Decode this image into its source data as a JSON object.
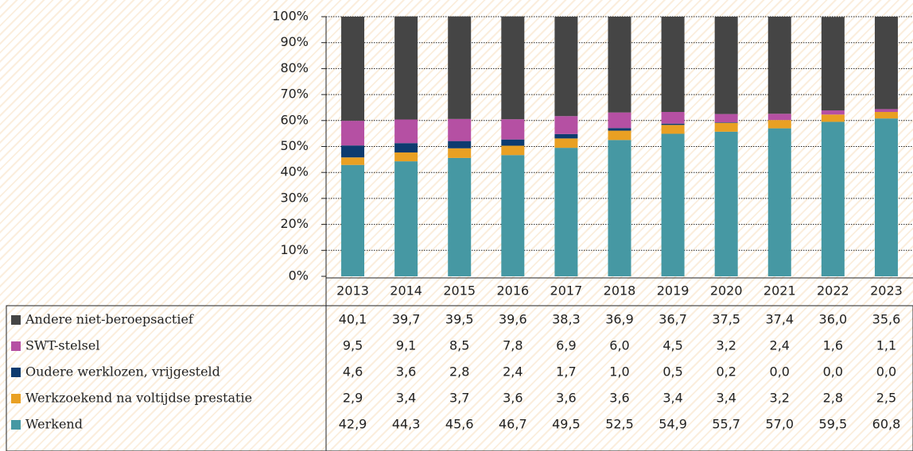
{
  "chart_data": {
    "type": "stacked_bar",
    "categories": [
      "2013",
      "2014",
      "2015",
      "2016",
      "2017",
      "2018",
      "2019",
      "2020",
      "2021",
      "2022",
      "2023"
    ],
    "series": [
      {
        "name": "Andere niet-beroepsactief",
        "color": "#454545",
        "values": [
          40.1,
          39.7,
          39.5,
          39.6,
          38.3,
          36.9,
          36.7,
          37.5,
          37.4,
          36.0,
          35.6
        ],
        "value_labels": [
          "40,1",
          "39,7",
          "39,5",
          "39,6",
          "38,3",
          "36,9",
          "36,7",
          "37,5",
          "37,4",
          "36,0",
          "35,6"
        ]
      },
      {
        "name": "SWT-stelsel",
        "color": "#b550a3",
        "values": [
          9.5,
          9.1,
          8.5,
          7.8,
          6.9,
          6.0,
          4.5,
          3.2,
          2.4,
          1.6,
          1.1
        ],
        "value_labels": [
          "9,5",
          "9,1",
          "8,5",
          "7,8",
          "6,9",
          "6,0",
          "4,5",
          "3,2",
          "2,4",
          "1,6",
          "1,1"
        ]
      },
      {
        "name": "Oudere werklozen, vrijgesteld",
        "color": "#0d3b6f",
        "values": [
          4.6,
          3.6,
          2.8,
          2.4,
          1.7,
          1.0,
          0.5,
          0.2,
          0.0,
          0.0,
          0.0
        ],
        "value_labels": [
          "4,6",
          "3,6",
          "2,8",
          "2,4",
          "1,7",
          "1,0",
          "0,5",
          "0,2",
          "0,0",
          "0,0",
          "0,0"
        ]
      },
      {
        "name": "Werkzoekend na voltijdse prestatie",
        "color": "#e9a023",
        "values": [
          2.9,
          3.4,
          3.7,
          3.6,
          3.6,
          3.6,
          3.4,
          3.4,
          3.2,
          2.8,
          2.5
        ],
        "value_labels": [
          "2,9",
          "3,4",
          "3,7",
          "3,6",
          "3,6",
          "3,6",
          "3,4",
          "3,4",
          "3,2",
          "2,8",
          "2,5"
        ]
      },
      {
        "name": "Werkend",
        "color": "#4698a3",
        "values": [
          42.9,
          44.3,
          45.6,
          46.7,
          49.5,
          52.5,
          54.9,
          55.7,
          57.0,
          59.5,
          60.8
        ],
        "value_labels": [
          "42,9",
          "44,3",
          "45,6",
          "46,7",
          "49,5",
          "52,5",
          "54,9",
          "55,7",
          "57,0",
          "59,5",
          "60,8"
        ]
      }
    ],
    "ylim": [
      0,
      100
    ],
    "yticks": [
      {
        "value": 0,
        "label": "0%"
      },
      {
        "value": 10,
        "label": "10%"
      },
      {
        "value": 20,
        "label": "20%"
      },
      {
        "value": 30,
        "label": "30%"
      },
      {
        "value": 40,
        "label": "40%"
      },
      {
        "value": 50,
        "label": "50%"
      },
      {
        "value": 60,
        "label": "60%"
      },
      {
        "value": 70,
        "label": "70%"
      },
      {
        "value": 80,
        "label": "80%"
      },
      {
        "value": 90,
        "label": "90%"
      },
      {
        "value": 100,
        "label": "100%"
      }
    ],
    "grid": true
  }
}
